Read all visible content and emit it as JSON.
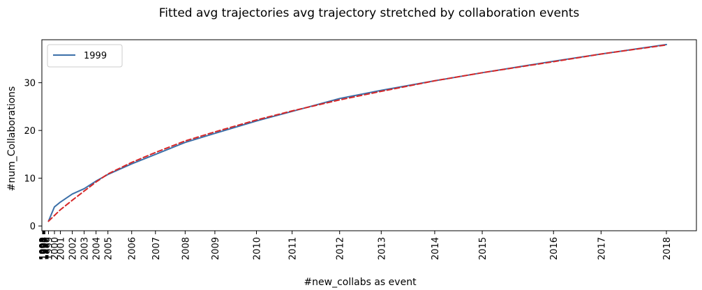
{
  "chart_data": {
    "type": "line",
    "title": "Fitted avg trajectories avg trajectory stretched by collaboration events",
    "xlabel": "#new_collabs as event",
    "ylabel": "#num_Collaborations",
    "ylim": [
      -1,
      39
    ],
    "yticks": [
      0,
      10,
      20,
      30
    ],
    "legend": {
      "placement": "top-left",
      "entries": [
        "1999"
      ]
    },
    "grid": false,
    "x_ticks": [
      {
        "label": "1990",
        "x": 0.0
      },
      {
        "label": "1991",
        "x": 0.01
      },
      {
        "label": "1992",
        "x": 0.02
      },
      {
        "label": "1993",
        "x": 0.03
      },
      {
        "label": "1994",
        "x": 0.05
      },
      {
        "label": "1995",
        "x": 0.07
      },
      {
        "label": "1996",
        "x": 0.1
      },
      {
        "label": "1997",
        "x": 0.14
      },
      {
        "label": "1998",
        "x": 0.2
      },
      {
        "label": "1999",
        "x": 0.5
      },
      {
        "label": "2000",
        "x": 1.0
      },
      {
        "label": "2001",
        "x": 1.5
      },
      {
        "label": "2002",
        "x": 2.5
      },
      {
        "label": "2003",
        "x": 3.5
      },
      {
        "label": "2004",
        "x": 4.5
      },
      {
        "label": "2005",
        "x": 5.5
      },
      {
        "label": "2006",
        "x": 7.5
      },
      {
        "label": "2007",
        "x": 9.5
      },
      {
        "label": "2008",
        "x": 12.0
      },
      {
        "label": "2009",
        "x": 14.5
      },
      {
        "label": "2010",
        "x": 18.0
      },
      {
        "label": "2011",
        "x": 21.0
      },
      {
        "label": "2012",
        "x": 25.0
      },
      {
        "label": "2013",
        "x": 28.5
      },
      {
        "label": "2014",
        "x": 33.0
      },
      {
        "label": "2015",
        "x": 37.0
      },
      {
        "label": "2016",
        "x": 43.0
      },
      {
        "label": "2017",
        "x": 47.0
      },
      {
        "label": "2018",
        "x": 52.5
      }
    ],
    "series": [
      {
        "name": "1999",
        "color": "#3b6fa8",
        "style": "solid",
        "x": [
          0.5,
          1.0,
          1.5,
          2.5,
          3.5,
          4.5,
          5.5,
          7.5,
          9.5,
          12.0,
          14.5,
          18.0,
          21.0,
          25.0,
          28.5,
          33.0,
          37.0,
          43.0,
          47.0,
          52.5
        ],
        "y": [
          1.0,
          4.0,
          5.0,
          6.7,
          7.8,
          9.4,
          10.8,
          13.0,
          15.0,
          17.5,
          19.4,
          22.0,
          24.0,
          26.7,
          28.4,
          30.4,
          32.1,
          34.5,
          36.0,
          38.0
        ]
      },
      {
        "name": "",
        "color": "#d62728",
        "style": "dashed",
        "x": [
          0.5,
          1.0,
          1.5,
          2.5,
          3.5,
          4.5,
          5.5,
          7.5,
          9.5,
          12.0,
          14.5,
          18.0,
          21.0,
          25.0,
          28.5,
          33.0,
          37.0,
          43.0,
          47.0,
          52.5
        ],
        "y": [
          1.0,
          2.2,
          3.4,
          5.4,
          7.3,
          9.2,
          10.9,
          13.3,
          15.4,
          17.8,
          19.7,
          22.2,
          24.1,
          26.4,
          28.2,
          30.4,
          32.1,
          34.4,
          36.0,
          37.9
        ]
      }
    ]
  }
}
